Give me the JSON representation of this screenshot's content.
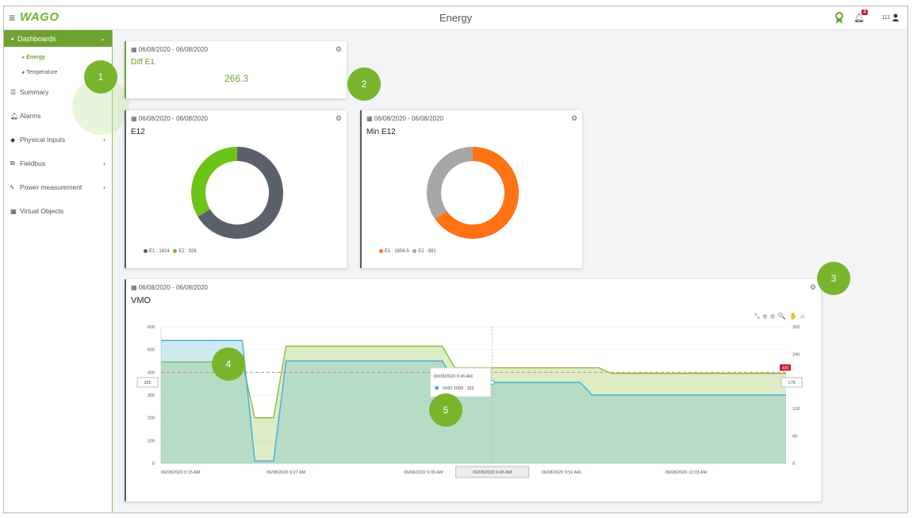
{
  "header": {
    "title": "Energy",
    "logo": "WAGO",
    "menu_icon": "hamburger-icon",
    "notification_count": "4",
    "user_id": "111"
  },
  "sidebar": {
    "dashboards_label": "Dashboards",
    "sub_items": [
      {
        "label": "Energy",
        "active": true
      },
      {
        "label": "Temperature",
        "active": false
      }
    ],
    "items": [
      {
        "label": "Summary",
        "icon": "summary-icon",
        "chevron": false
      },
      {
        "label": "Alarms",
        "icon": "bell-icon",
        "chevron": false
      },
      {
        "label": "Physical Inputs",
        "icon": "tag-icon",
        "chevron": true
      },
      {
        "label": "Fieldbus",
        "icon": "network-icon",
        "chevron": true
      },
      {
        "label": "Power measurement",
        "icon": "bolt-icon",
        "chevron": true
      },
      {
        "label": "Virtual Objects",
        "icon": "calculator-icon",
        "chevron": false
      }
    ]
  },
  "diff_card": {
    "date": "06/08/2020 - 06/08/2020",
    "title": "Diff E1",
    "value": "266.3"
  },
  "e12_card": {
    "date": "06/08/2020 - 06/08/2020",
    "title": "E12",
    "legend1": "E1 : 1824",
    "legend2": "E2 : 926",
    "color1": "#5b616b",
    "color2": "#6cc417"
  },
  "min_card": {
    "date": "06/08/2020 - 06/08/2020",
    "title": "Min E12",
    "legend1": "E1 : 1656.5",
    "legend2": "E2 : 881",
    "color1": "#ff7315",
    "color2": "#a6a6a6"
  },
  "vmo_card": {
    "date": "06/08/2020 - 06/08/2020",
    "title": "VMO",
    "toolbar": "⤡ ⊕ ⊖ 🔍 ✋ ⌂",
    "left_marker": "356",
    "right_marker": "178",
    "tooltip_time": "06/08/2020 9:45 AM",
    "tooltip_series": "VMO 3009 : 355",
    "crosshair_label": "06/08/2020 9:45 AM",
    "alert_label": "400"
  },
  "callouts": [
    "1",
    "2",
    "3",
    "4",
    "5"
  ],
  "chart_data": [
    {
      "type": "pie",
      "title": "E12",
      "categories": [
        "E1",
        "E2"
      ],
      "values": [
        1824,
        926
      ],
      "colors": [
        "#5b616b",
        "#6cc417"
      ]
    },
    {
      "type": "pie",
      "title": "Min E12",
      "categories": [
        "E1",
        "E2"
      ],
      "values": [
        1656.5,
        881
      ],
      "colors": [
        "#ff7315",
        "#a6a6a6"
      ]
    },
    {
      "type": "area",
      "title": "VMO",
      "x": [
        "06/08/2020 9:15 AM",
        "06/08/2020 9:27 AM",
        "06/08/2020 9:39 AM",
        "06/08/2020 9:45 AM",
        "06/08/2020 9:51 AM",
        "06/08/2020 10:03 AM"
      ],
      "y_left_ticks": [
        0,
        100,
        200,
        300,
        400,
        500,
        600
      ],
      "y_right_ticks": [
        0,
        60,
        120,
        180,
        240,
        300
      ],
      "ylim_left": [
        0,
        600
      ],
      "ylim_right": [
        0,
        300
      ],
      "series": [
        {
          "name": "VMO 3009",
          "color": "#4ab0d6",
          "axis": "right",
          "points": [
            [
              0,
              270
            ],
            [
              0.13,
              270
            ],
            [
              0.15,
              5
            ],
            [
              0.18,
              5
            ],
            [
              0.2,
              225
            ],
            [
              0.45,
              225
            ],
            [
              0.47,
              178
            ],
            [
              0.67,
              178
            ],
            [
              0.69,
              150
            ],
            [
              1,
              150
            ]
          ]
        },
        {
          "color": "#8fbc4b",
          "axis": "left",
          "points": [
            [
              0,
              445
            ],
            [
              0.13,
              445
            ],
            [
              0.15,
              200
            ],
            [
              0.18,
              200
            ],
            [
              0.2,
              515
            ],
            [
              0.45,
              515
            ],
            [
              0.47,
              420
            ],
            [
              0.7,
              420
            ],
            [
              0.72,
              395
            ],
            [
              1,
              395
            ]
          ]
        }
      ],
      "threshold": 400,
      "grid": true
    }
  ]
}
